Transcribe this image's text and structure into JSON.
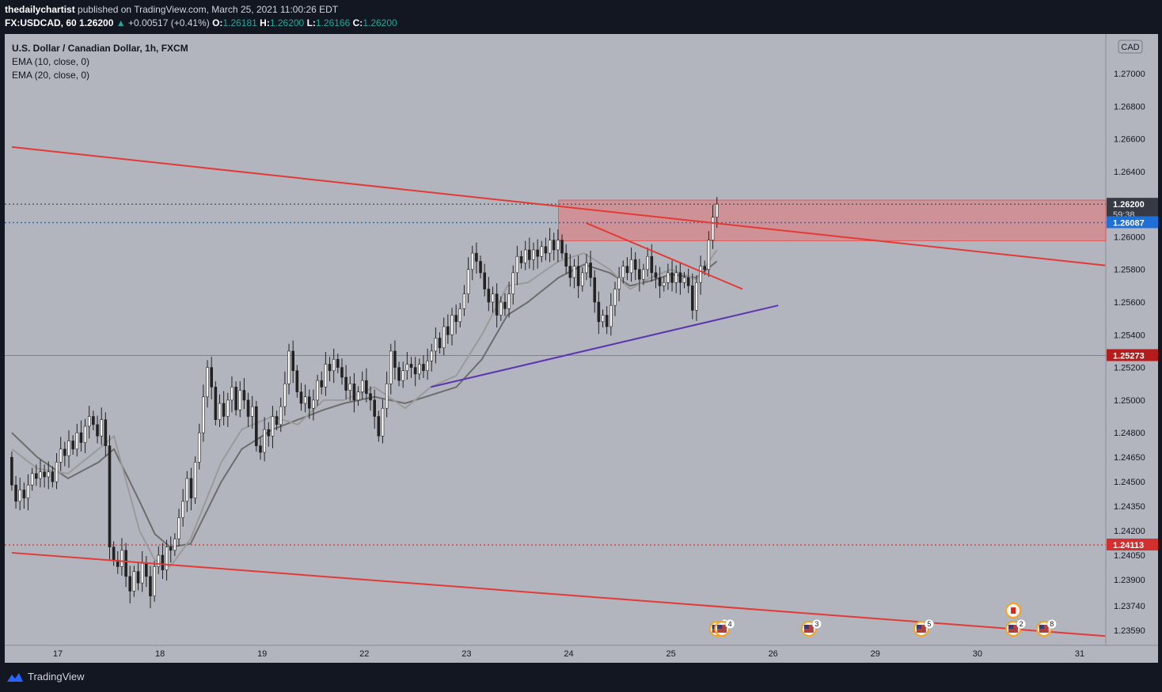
{
  "header": {
    "author": "thedailychartist",
    "published": "published on TradingView.com, March 25, 2021 11:00:26 EDT",
    "symbol": "FX:USDCAD, 60",
    "price": "1.26200",
    "change_arrow": "▲",
    "change": "+0.00517 (+0.41%)",
    "o_label": "O:",
    "o_value": "1.26181",
    "h_label": "H:",
    "h_value": "1.26200",
    "l_label": "L:",
    "l_value": "1.26166",
    "c_label": "C:",
    "c_value": "1.26200"
  },
  "legend": {
    "title": "U.S. Dollar / Canadian Dollar, 1h, FXCM",
    "ema10": "EMA (10, close, 0)",
    "ema20": "EMA (20, close, 0)"
  },
  "footer": {
    "brand": "TradingView"
  },
  "chart_data": {
    "type": "candlestick",
    "title": "U.S. Dollar / Canadian Dollar, 1h, FXCM",
    "currency": "CAD",
    "ylim": [
      1.2353,
      1.2777
    ],
    "y_ticks": [
      {
        "v": 1.27,
        "label": "1.27000"
      },
      {
        "v": 1.268,
        "label": "1.26800"
      },
      {
        "v": 1.266,
        "label": "1.26600"
      },
      {
        "v": 1.264,
        "label": "1.26400"
      },
      {
        "v": 1.26,
        "label": "1.26000"
      },
      {
        "v": 1.258,
        "label": "1.25800"
      },
      {
        "v": 1.256,
        "label": "1.25600"
      },
      {
        "v": 1.254,
        "label": "1.25400"
      },
      {
        "v": 1.252,
        "label": "1.25200"
      },
      {
        "v": 1.25,
        "label": "1.25000"
      },
      {
        "v": 1.248,
        "label": "1.24800"
      },
      {
        "v": 1.2465,
        "label": "1.24650"
      },
      {
        "v": 1.245,
        "label": "1.24500"
      },
      {
        "v": 1.2435,
        "label": "1.24350"
      },
      {
        "v": 1.242,
        "label": "1.24200"
      },
      {
        "v": 1.2405,
        "label": "1.24050"
      },
      {
        "v": 1.239,
        "label": "1.23900"
      },
      {
        "v": 1.2374,
        "label": "1.23740"
      },
      {
        "v": 1.2359,
        "label": "1.23590"
      }
    ],
    "x_ticks": [
      "17",
      "18",
      "19",
      "22",
      "23",
      "24",
      "25",
      "26",
      "29",
      "30",
      "31"
    ],
    "price_badges": [
      {
        "v": 1.262,
        "label": "1.26200",
        "sub": "59:38",
        "color": "#363a45",
        "bold": true
      },
      {
        "v": 1.26087,
        "label": "1.26087",
        "color": "#1e6fd6"
      },
      {
        "v": 1.25273,
        "label": "1.25273",
        "color": "#b71c1c"
      },
      {
        "v": 1.24113,
        "label": "1.24113",
        "color": "#d32f2f"
      }
    ],
    "horizontal_lines": [
      {
        "v": 1.262,
        "style": "dotted",
        "color": "#555555"
      },
      {
        "v": 1.26087,
        "style": "dotted",
        "color": "#1e6fd6"
      },
      {
        "v": 1.25273,
        "style": "solid",
        "color": "#d06060"
      },
      {
        "v": 1.24113,
        "style": "dotted",
        "color": "#e53935"
      }
    ],
    "resistance_zone": {
      "y_top": 1.26225,
      "y_bottom": 1.25975,
      "x_start_day": 23.9,
      "color": "#e57373"
    },
    "trendlines": [
      {
        "from": [
          16.55,
          1.2655
        ],
        "to": [
          31.25,
          1.25825
        ],
        "color": "#e53935",
        "role": "upper channel"
      },
      {
        "from": [
          16.55,
          1.24065
        ],
        "to": [
          31.25,
          1.23555
        ],
        "color": "#e53935",
        "role": "lower channel"
      },
      {
        "from": [
          24.17,
          1.26085
        ],
        "to": [
          25.7,
          1.2568
        ],
        "color": "#e53935",
        "role": "flag top"
      },
      {
        "from": [
          22.65,
          1.2508
        ],
        "to": [
          26.05,
          1.2558
        ],
        "color": "#5e35b1",
        "role": "rising support"
      }
    ],
    "candles_hourly": [
      [
        1.2465,
        1.2448
      ],
      [
        1.2448,
        1.2438
      ],
      [
        1.2438,
        1.2445
      ],
      [
        1.2445,
        1.244
      ],
      [
        1.244,
        1.2448
      ],
      [
        1.2448,
        1.2455
      ],
      [
        1.2455,
        1.2452
      ],
      [
        1.2452,
        1.2456
      ],
      [
        1.2456,
        1.2453
      ],
      [
        1.2453,
        1.2456
      ],
      [
        1.2456,
        1.245
      ],
      [
        1.245,
        1.2462
      ],
      [
        1.2462,
        1.247
      ],
      [
        1.247,
        1.2466
      ],
      [
        1.2466,
        1.2475
      ],
      [
        1.2475,
        1.247
      ],
      [
        1.247,
        1.248
      ],
      [
        1.248,
        1.2474
      ],
      [
        1.2474,
        1.2484
      ],
      [
        1.2484,
        1.249
      ],
      [
        1.249,
        1.2485
      ],
      [
        1.2485,
        1.2478
      ],
      [
        1.2478,
        1.2488
      ],
      [
        1.2488,
        1.2472
      ],
      [
        1.2472,
        1.241
      ],
      [
        1.241,
        1.2402
      ],
      [
        1.2402,
        1.2398
      ],
      [
        1.2398,
        1.2408
      ],
      [
        1.2408,
        1.2392
      ],
      [
        1.2392,
        1.2383
      ],
      [
        1.2383,
        1.2395
      ],
      [
        1.2395,
        1.2388
      ],
      [
        1.2388,
        1.24
      ],
      [
        1.24,
        1.2392
      ],
      [
        1.2392,
        1.238
      ],
      [
        1.238,
        1.2398
      ],
      [
        1.2398,
        1.2405
      ],
      [
        1.2405,
        1.2396
      ],
      [
        1.2396,
        1.241
      ],
      [
        1.241,
        1.2408
      ],
      [
        1.2408,
        1.2415
      ],
      [
        1.2415,
        1.2428
      ],
      [
        1.2428,
        1.2438
      ],
      [
        1.2438,
        1.2452
      ],
      [
        1.2452,
        1.244
      ],
      [
        1.244,
        1.2462
      ],
      [
        1.2462,
        1.248
      ],
      [
        1.248,
        1.2502
      ],
      [
        1.2502,
        1.252
      ],
      [
        1.252,
        1.2508
      ],
      [
        1.2508,
        1.2488
      ],
      [
        1.2488,
        1.2498
      ],
      [
        1.2498,
        1.249
      ],
      [
        1.249,
        1.25
      ],
      [
        1.25,
        1.2508
      ],
      [
        1.2508,
        1.2494
      ],
      [
        1.2494,
        1.2506
      ],
      [
        1.2506,
        1.25
      ],
      [
        1.25,
        1.249
      ],
      [
        1.249,
        1.2496
      ],
      [
        1.2496,
        1.2472
      ],
      [
        1.2472,
        1.2468
      ],
      [
        1.2468,
        1.2482
      ],
      [
        1.2482,
        1.2478
      ],
      [
        1.2478,
        1.249
      ],
      [
        1.249,
        1.2485
      ],
      [
        1.2485,
        1.2496
      ],
      [
        1.2496,
        1.251
      ],
      [
        1.251,
        1.253
      ],
      [
        1.253,
        1.2518
      ],
      [
        1.2518,
        1.2505
      ],
      [
        1.2505,
        1.2498
      ],
      [
        1.2498,
        1.2502
      ],
      [
        1.2502,
        1.2495
      ],
      [
        1.2495,
        1.25
      ],
      [
        1.25,
        1.2512
      ],
      [
        1.2512,
        1.2508
      ],
      [
        1.2508,
        1.2522
      ],
      [
        1.2522,
        1.2518
      ],
      [
        1.2518,
        1.2525
      ],
      [
        1.2525,
        1.252
      ],
      [
        1.252,
        1.2514
      ],
      [
        1.2514,
        1.2506
      ],
      [
        1.2506,
        1.251
      ],
      [
        1.251,
        1.25
      ],
      [
        1.25,
        1.2505
      ],
      [
        1.2505,
        1.2512
      ],
      [
        1.2512,
        1.2504
      ],
      [
        1.2504,
        1.25
      ],
      [
        1.25,
        1.249
      ],
      [
        1.249,
        1.2478
      ],
      [
        1.2478,
        1.2495
      ],
      [
        1.2495,
        1.251
      ],
      [
        1.251,
        1.253
      ],
      [
        1.253,
        1.252
      ],
      [
        1.252,
        1.2512
      ],
      [
        1.2512,
        1.2518
      ],
      [
        1.2518,
        1.2522
      ],
      [
        1.2522,
        1.252
      ],
      [
        1.252,
        1.2516
      ],
      [
        1.2516,
        1.2522
      ],
      [
        1.2522,
        1.2518
      ],
      [
        1.2518,
        1.2524
      ],
      [
        1.2524,
        1.253
      ],
      [
        1.253,
        1.2538
      ],
      [
        1.2538,
        1.2532
      ],
      [
        1.2532,
        1.2545
      ],
      [
        1.2545,
        1.254
      ],
      [
        1.254,
        1.2552
      ],
      [
        1.2552,
        1.2548
      ],
      [
        1.2548,
        1.2556
      ],
      [
        1.2556,
        1.2565
      ],
      [
        1.2565,
        1.258
      ],
      [
        1.258,
        1.259
      ],
      [
        1.259,
        1.2585
      ],
      [
        1.2585,
        1.2578
      ],
      [
        1.2578,
        1.2568
      ],
      [
        1.2568,
        1.256
      ],
      [
        1.256,
        1.2565
      ],
      [
        1.2565,
        1.2552
      ],
      [
        1.2552,
        1.256
      ],
      [
        1.256,
        1.2556
      ],
      [
        1.2556,
        1.2565
      ],
      [
        1.2565,
        1.2578
      ],
      [
        1.2578,
        1.2588
      ],
      [
        1.2588,
        1.2584
      ],
      [
        1.2584,
        1.2592
      ],
      [
        1.2592,
        1.2586
      ],
      [
        1.2586,
        1.2592
      ],
      [
        1.2592,
        1.2588
      ],
      [
        1.2588,
        1.2594
      ],
      [
        1.2594,
        1.259
      ],
      [
        1.259,
        1.2598
      ],
      [
        1.2598,
        1.2592
      ],
      [
        1.2592,
        1.2598
      ],
      [
        1.2598,
        1.259
      ],
      [
        1.259,
        1.2582
      ],
      [
        1.2582,
        1.2575
      ],
      [
        1.2575,
        1.2582
      ],
      [
        1.2582,
        1.257
      ],
      [
        1.257,
        1.2578
      ],
      [
        1.2578,
        1.2584
      ],
      [
        1.2584,
        1.2575
      ],
      [
        1.2575,
        1.256
      ],
      [
        1.256,
        1.2548
      ],
      [
        1.2548,
        1.2552
      ],
      [
        1.2552,
        1.2545
      ],
      [
        1.2545,
        1.2558
      ],
      [
        1.2558,
        1.2568
      ],
      [
        1.2568,
        1.2575
      ],
      [
        1.2575,
        1.2582
      ],
      [
        1.2582,
        1.2578
      ],
      [
        1.2578,
        1.2586
      ],
      [
        1.2586,
        1.258
      ],
      [
        1.258,
        1.2574
      ],
      [
        1.2574,
        1.258
      ],
      [
        1.258,
        1.2588
      ],
      [
        1.2588,
        1.2578
      ],
      [
        1.2578,
        1.2575
      ],
      [
        1.2575,
        1.257
      ],
      [
        1.257,
        1.2572
      ],
      [
        1.2572,
        1.2578
      ],
      [
        1.2578,
        1.2572
      ],
      [
        1.2572,
        1.2578
      ],
      [
        1.2578,
        1.2572
      ],
      [
        1.2572,
        1.2575
      ],
      [
        1.2575,
        1.257
      ],
      [
        1.257,
        1.2555
      ],
      [
        1.2555,
        1.2572
      ],
      [
        1.2572,
        1.2582
      ],
      [
        1.2582,
        1.258
      ],
      [
        1.258,
        1.2598
      ],
      [
        1.2598,
        1.2612
      ],
      [
        1.2612,
        1.262
      ]
    ],
    "ema10": [
      [
        16.55,
        1.247
      ],
      [
        16.8,
        1.2458
      ],
      [
        17.1,
        1.2455
      ],
      [
        17.4,
        1.247
      ],
      [
        17.55,
        1.2478
      ],
      [
        17.8,
        1.242
      ],
      [
        17.95,
        1.2402
      ],
      [
        18.1,
        1.2398
      ],
      [
        18.3,
        1.2415
      ],
      [
        18.6,
        1.2462
      ],
      [
        18.8,
        1.2482
      ],
      [
        19.1,
        1.249
      ],
      [
        19.35,
        1.2485
      ],
      [
        19.6,
        1.25
      ],
      [
        19.8,
        1.25
      ],
      [
        22.1,
        1.2508
      ],
      [
        22.4,
        1.2495
      ],
      [
        22.65,
        1.2508
      ],
      [
        22.9,
        1.2515
      ],
      [
        23.15,
        1.254
      ],
      [
        23.4,
        1.257
      ],
      [
        23.6,
        1.2572
      ],
      [
        23.9,
        1.2585
      ],
      [
        24.15,
        1.259
      ],
      [
        24.4,
        1.258
      ],
      [
        24.6,
        1.2568
      ],
      [
        24.8,
        1.2575
      ],
      [
        25.0,
        1.258
      ],
      [
        25.25,
        1.2574
      ],
      [
        25.45,
        1.2592
      ]
    ],
    "ema20": [
      [
        16.55,
        1.248
      ],
      [
        16.8,
        1.2465
      ],
      [
        17.1,
        1.2452
      ],
      [
        17.4,
        1.2462
      ],
      [
        17.55,
        1.247
      ],
      [
        17.8,
        1.2438
      ],
      [
        17.95,
        1.2418
      ],
      [
        18.1,
        1.241
      ],
      [
        18.3,
        1.2412
      ],
      [
        18.6,
        1.245
      ],
      [
        18.8,
        1.247
      ],
      [
        19.1,
        1.2482
      ],
      [
        19.35,
        1.2488
      ],
      [
        19.6,
        1.2494
      ],
      [
        19.8,
        1.2498
      ],
      [
        22.1,
        1.2502
      ],
      [
        22.4,
        1.2498
      ],
      [
        22.65,
        1.2503
      ],
      [
        22.9,
        1.2508
      ],
      [
        23.15,
        1.2525
      ],
      [
        23.4,
        1.2552
      ],
      [
        23.6,
        1.256
      ],
      [
        23.9,
        1.2575
      ],
      [
        24.15,
        1.2583
      ],
      [
        24.4,
        1.2578
      ],
      [
        24.6,
        1.257
      ],
      [
        24.8,
        1.2573
      ],
      [
        25.0,
        1.2577
      ],
      [
        25.25,
        1.2575
      ],
      [
        25.45,
        1.2585
      ]
    ],
    "event_markers": [
      {
        "day": 25.45,
        "label": "2"
      },
      {
        "day": 25.5,
        "label": "4"
      },
      {
        "day": 26.35,
        "label": "3"
      },
      {
        "day": 29.45,
        "label": "5"
      },
      {
        "day": 30.35,
        "label": "2"
      },
      {
        "day": 30.65,
        "label": "8"
      }
    ]
  }
}
